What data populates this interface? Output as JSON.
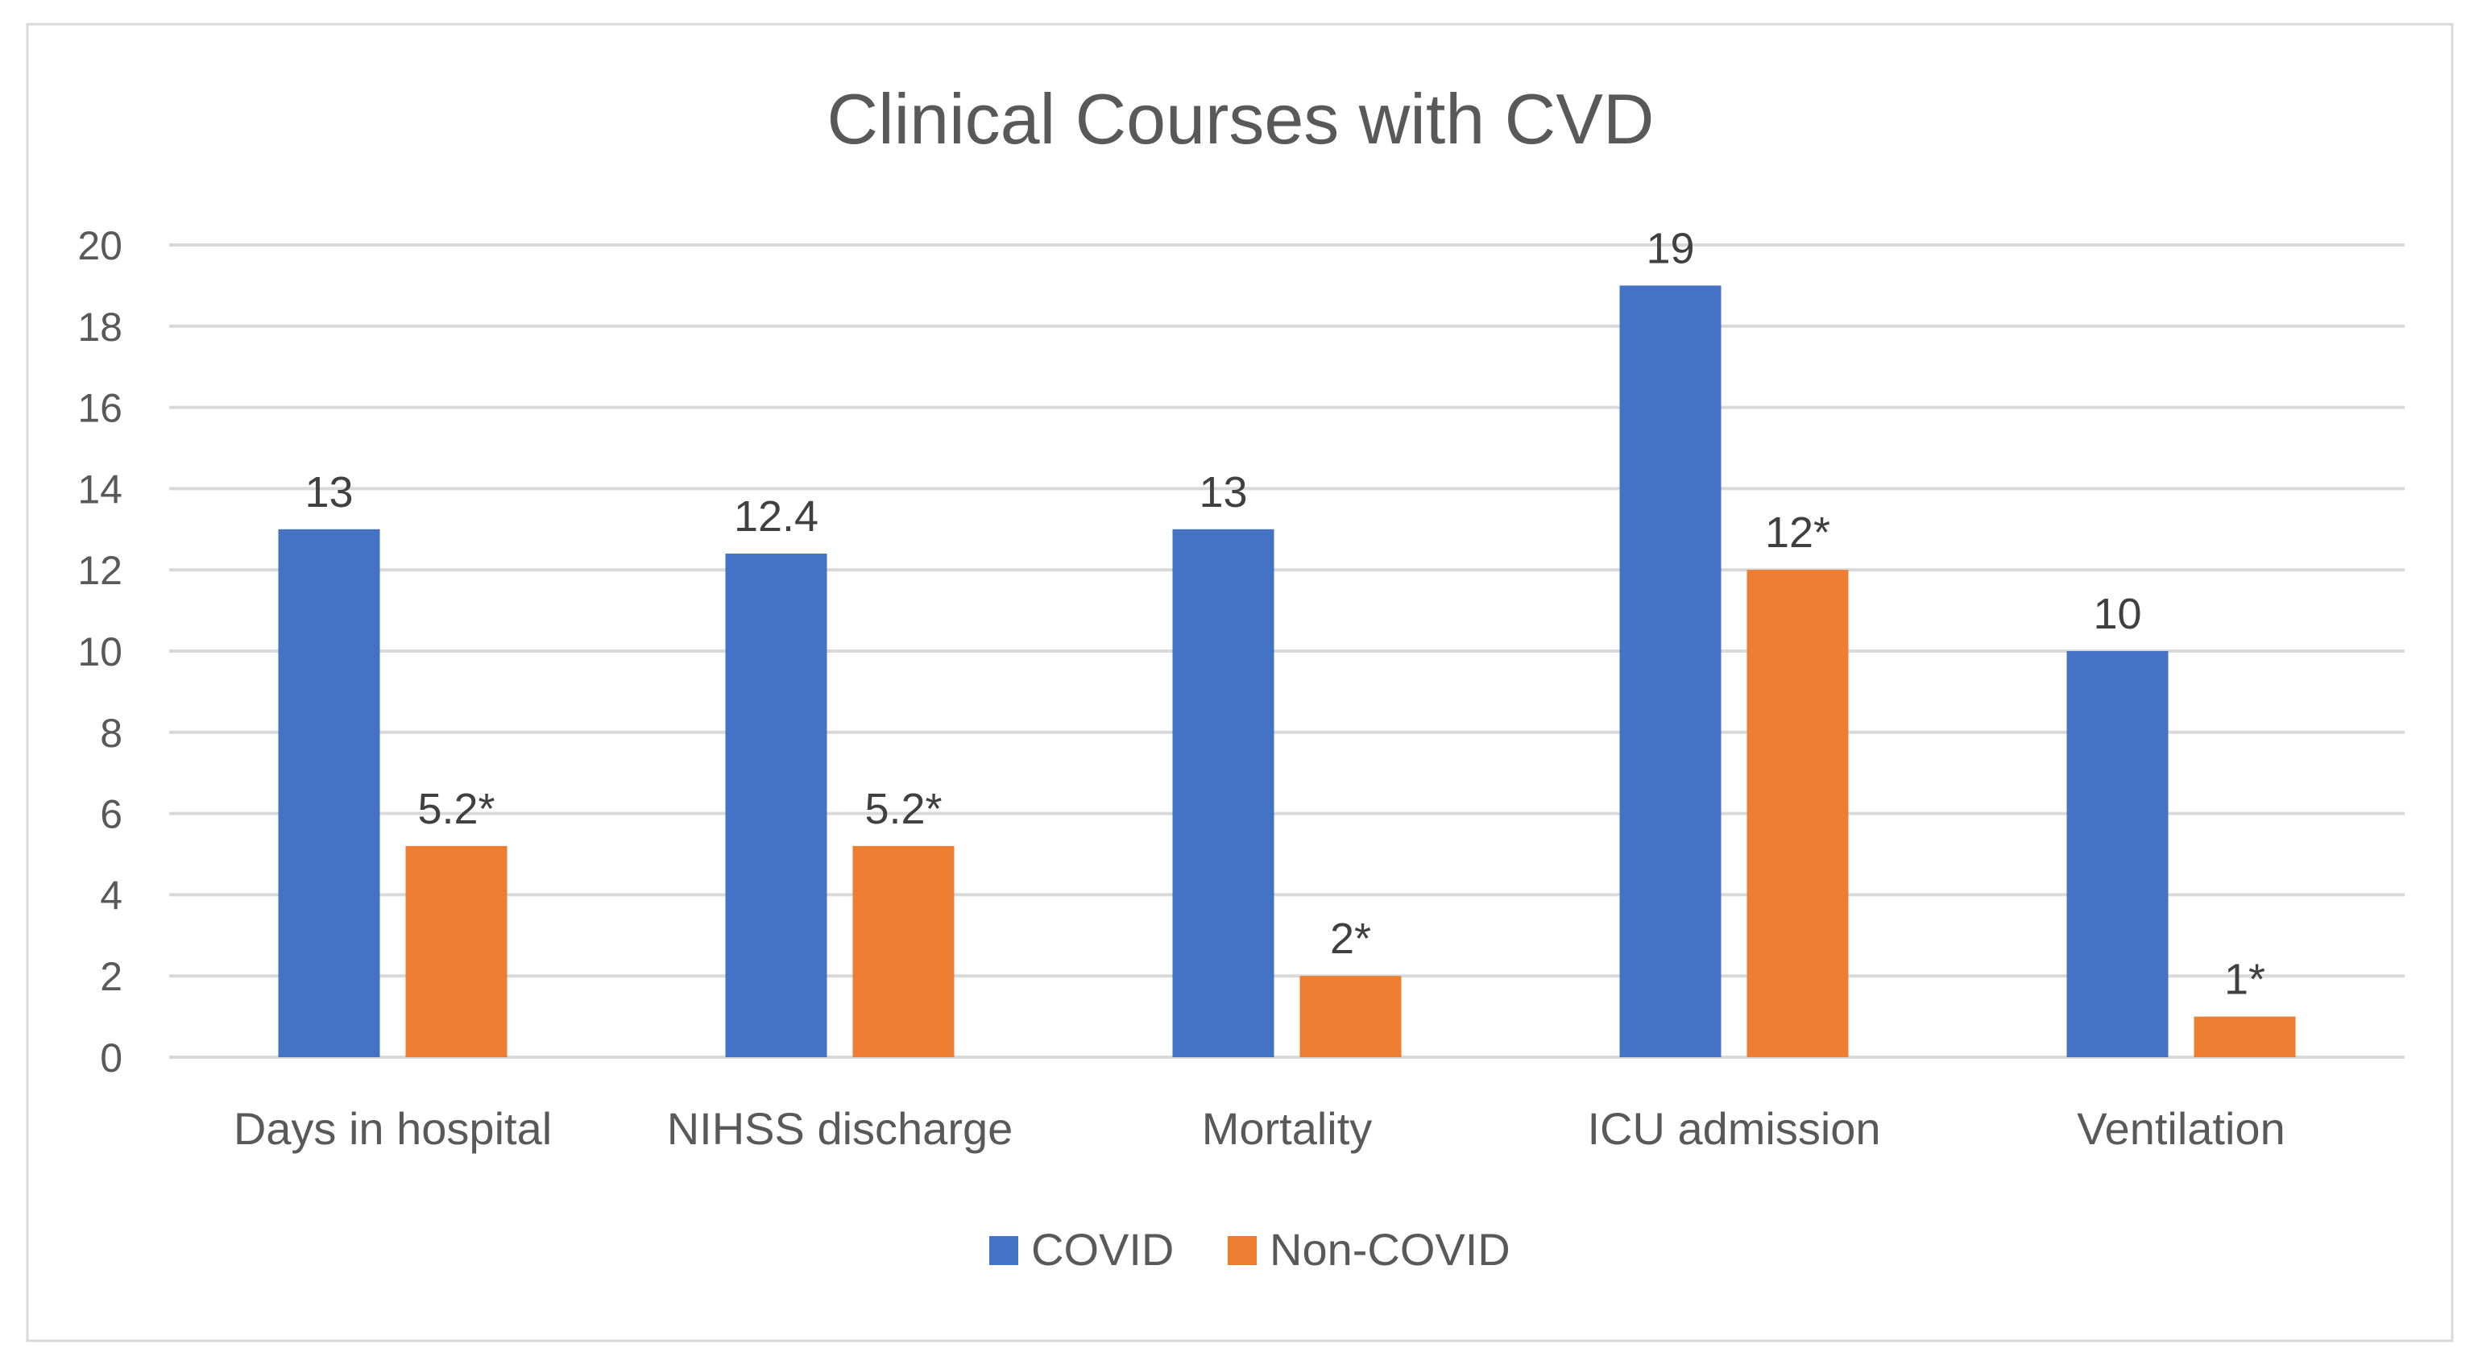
{
  "chart_data": {
    "type": "bar",
    "title": "Clinical Courses with CVD",
    "xlabel": "",
    "ylabel": "",
    "ylim": [
      0,
      20
    ],
    "yticks": [
      0,
      2,
      4,
      6,
      8,
      10,
      12,
      14,
      16,
      18,
      20
    ],
    "grid": true,
    "legend_position": "bottom",
    "categories": [
      "Days in hospital",
      "NIHSS discharge",
      "Mortality",
      "ICU admission",
      "Ventilation"
    ],
    "series": [
      {
        "name": "COVID",
        "color": "#4472C4",
        "values": [
          13,
          12.4,
          13,
          19,
          10
        ],
        "labels": [
          "13",
          "12.4",
          "13",
          "19",
          "10"
        ]
      },
      {
        "name": "Non-COVID",
        "color": "#ED7D31",
        "values": [
          5.2,
          5.2,
          2,
          12,
          1
        ],
        "labels": [
          "5.2*",
          "5.2*",
          "2*",
          "12*",
          "1*"
        ]
      }
    ]
  },
  "colors": {
    "gridline": "#D9D9D9",
    "frame": "#D9D9D9",
    "text": "#595959"
  }
}
